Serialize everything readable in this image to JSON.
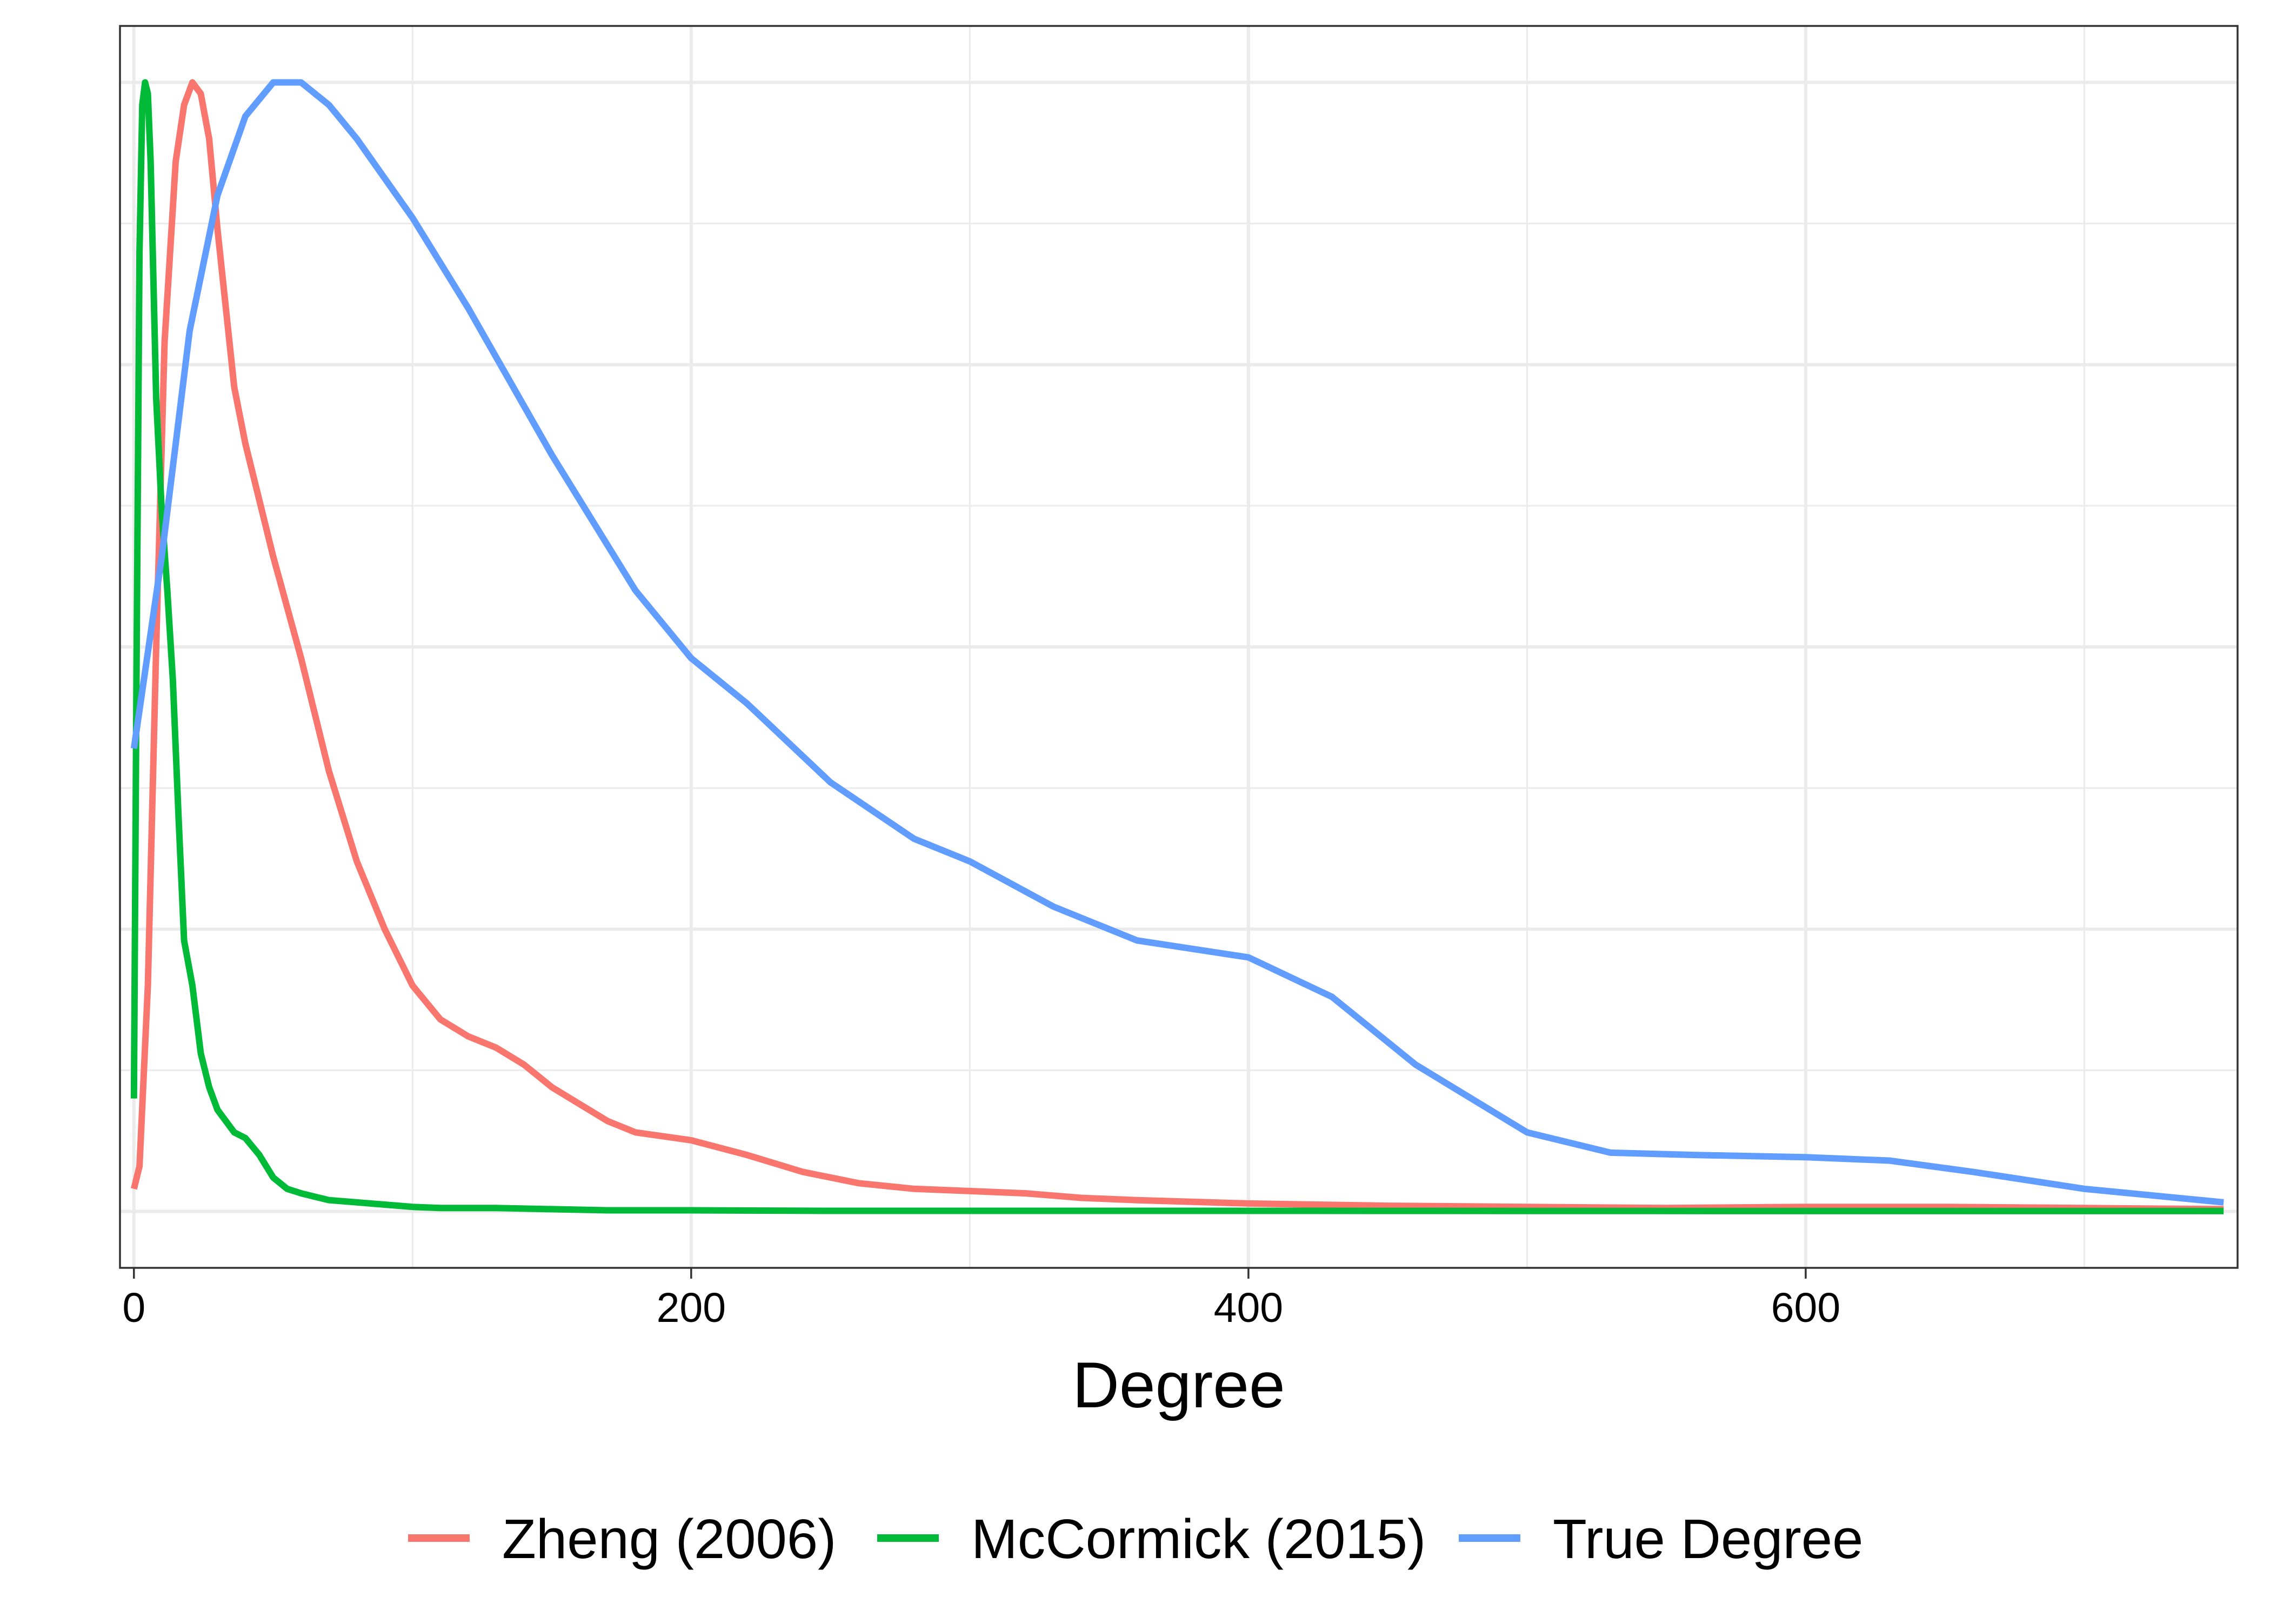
{
  "chart_data": {
    "type": "line",
    "title": "",
    "xlabel": "Degree",
    "ylabel": "",
    "xlim": [
      -5,
      755
    ],
    "ylim": [
      -0.05,
      1.05
    ],
    "x_ticks": [
      0,
      200,
      400,
      600
    ],
    "x_tick_labels": [
      "0",
      "200",
      "400",
      "600"
    ],
    "x_minor_ticks": [
      100,
      300,
      500,
      700
    ],
    "y_major_grid": [
      0,
      0.25,
      0.5,
      0.75,
      1.0
    ],
    "y_minor_grid": [
      0.125,
      0.375,
      0.625,
      0.875
    ],
    "y_ticks_shown": false,
    "grid": true,
    "legend_position": "bottom",
    "series": [
      {
        "name": "Zheng (2006)",
        "color": "#F8766D",
        "x": [
          0,
          2,
          5,
          8,
          11,
          15,
          18,
          21,
          24,
          27,
          30,
          33,
          36,
          40,
          45,
          50,
          60,
          70,
          80,
          90,
          100,
          110,
          120,
          130,
          140,
          150,
          160,
          170,
          180,
          200,
          220,
          240,
          260,
          280,
          300,
          320,
          340,
          360,
          400,
          450,
          500,
          550,
          600,
          650,
          700,
          750
        ],
        "y": [
          0.02,
          0.04,
          0.2,
          0.5,
          0.77,
          0.93,
          0.98,
          1.0,
          0.99,
          0.95,
          0.87,
          0.8,
          0.73,
          0.68,
          0.63,
          0.58,
          0.49,
          0.39,
          0.31,
          0.25,
          0.2,
          0.17,
          0.155,
          0.145,
          0.13,
          0.11,
          0.095,
          0.08,
          0.07,
          0.063,
          0.05,
          0.035,
          0.025,
          0.02,
          0.018,
          0.016,
          0.012,
          0.01,
          0.007,
          0.005,
          0.004,
          0.003,
          0.004,
          0.004,
          0.003,
          0.002
        ]
      },
      {
        "name": "McCormick (2015)",
        "color": "#00BA38",
        "x": [
          0,
          1,
          2,
          3,
          4,
          5,
          6,
          8,
          10,
          12,
          14,
          16,
          18,
          21,
          24,
          27,
          30,
          33,
          36,
          40,
          45,
          50,
          55,
          60,
          65,
          70,
          75,
          80,
          90,
          100,
          110,
          120,
          130,
          150,
          170,
          200,
          250,
          300,
          400,
          500,
          600,
          700,
          750
        ],
        "y": [
          0.1,
          0.5,
          0.85,
          0.98,
          1.0,
          0.99,
          0.93,
          0.72,
          0.62,
          0.55,
          0.47,
          0.35,
          0.24,
          0.2,
          0.14,
          0.11,
          0.09,
          0.08,
          0.07,
          0.065,
          0.05,
          0.03,
          0.02,
          0.016,
          0.013,
          0.01,
          0.009,
          0.008,
          0.006,
          0.004,
          0.003,
          0.003,
          0.003,
          0.002,
          0.001,
          0.001,
          0.0005,
          0.0005,
          0.0005,
          0.0004,
          0.0003,
          0.0003,
          0.0003
        ]
      },
      {
        "name": "True Degree",
        "color": "#619CFF",
        "x": [
          0,
          10,
          20,
          30,
          40,
          50,
          60,
          70,
          80,
          100,
          120,
          150,
          180,
          200,
          220,
          250,
          280,
          300,
          330,
          360,
          400,
          430,
          460,
          500,
          530,
          560,
          600,
          630,
          660,
          700,
          750
        ],
        "y": [
          0.41,
          0.58,
          0.78,
          0.9,
          0.97,
          1.0,
          1.0,
          0.98,
          0.95,
          0.88,
          0.8,
          0.67,
          0.55,
          0.49,
          0.45,
          0.38,
          0.33,
          0.31,
          0.27,
          0.24,
          0.225,
          0.19,
          0.13,
          0.07,
          0.052,
          0.05,
          0.048,
          0.045,
          0.035,
          0.02,
          0.008
        ]
      }
    ]
  }
}
